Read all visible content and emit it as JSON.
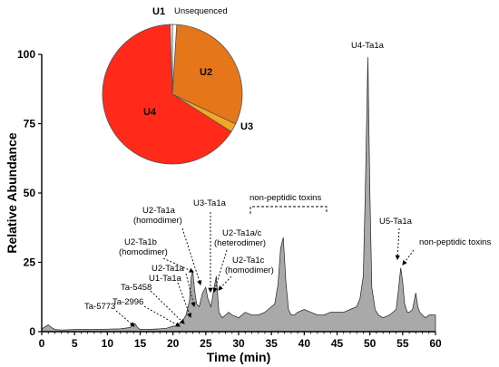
{
  "chart_data": [
    {
      "type": "area",
      "title": "",
      "xlabel": "Time (min)",
      "ylabel": "Relative Abundance",
      "xlim": [
        0,
        60
      ],
      "ylim": [
        0,
        100
      ],
      "xticks": [
        "0",
        "5",
        "10",
        "15",
        "20",
        "25",
        "30",
        "35",
        "40",
        "45",
        "50",
        "55",
        "60"
      ],
      "yticks": [
        "0",
        "25",
        "50",
        "75",
        "100"
      ],
      "fill_color": "#a9a9a9",
      "series": [
        {
          "x": [
            0,
            1,
            1.5,
            2,
            3,
            5,
            8,
            10,
            12,
            13.5,
            14.2,
            14.6,
            15,
            16,
            18,
            19,
            20,
            20.5,
            21,
            21.5,
            22,
            22.5,
            22.8,
            23,
            23.3,
            23.6,
            24,
            24.5,
            25,
            25.3,
            25.8,
            26.2,
            26.6,
            27,
            27.5,
            28,
            28.5,
            29,
            30,
            31,
            32,
            33,
            34,
            35,
            35.5,
            36,
            36.4,
            36.8,
            37.2,
            37.6,
            38,
            38.5,
            39,
            40,
            41,
            42,
            43,
            44,
            45,
            46,
            47,
            48,
            48.5,
            49,
            49.3,
            49.7,
            50,
            50.3,
            50.8,
            51.3,
            52,
            53,
            54,
            54.3,
            54.7,
            55,
            55.3,
            55.7,
            56,
            56.5,
            57,
            57.3,
            57.6,
            58,
            58.5,
            59,
            60
          ],
          "y": [
            1,
            2.5,
            1.5,
            0.8,
            0.6,
            0.8,
            0.8,
            0.9,
            1,
            1.5,
            3,
            1.5,
            0.8,
            0.8,
            1,
            1.2,
            2,
            2,
            3,
            4,
            6,
            11,
            20,
            22,
            15,
            10,
            9,
            14,
            16,
            12,
            9,
            15,
            20,
            7,
            5,
            6,
            7,
            6,
            5,
            7,
            6,
            6,
            7,
            9,
            10,
            17,
            30,
            34,
            18,
            8,
            6,
            6,
            7,
            8,
            7,
            6,
            6,
            7,
            7,
            7,
            8,
            9,
            12,
            20,
            50,
            99,
            50,
            16,
            8,
            6,
            5,
            6,
            8,
            14,
            23,
            18,
            10,
            7,
            7,
            8,
            14,
            9,
            7,
            6,
            5,
            6,
            6
          ]
        }
      ],
      "annotations": [
        "Ta-5773",
        "Ta-2996",
        "Ta-5458",
        "U1-Ta1a",
        "U2-Ta1a",
        "U2-Ta1b (homodimer)",
        "U2-Ta1a (homodimer)",
        "U3-Ta1a",
        "U2-Ta1a/c (heterodimer)",
        "U2-Ta1c (homodimer)",
        "non-peptidic toxins",
        "U4-Ta1a",
        "U5-Ta1a",
        "non-peptidic toxins"
      ]
    },
    {
      "type": "pie",
      "labels": [
        "U1",
        "Unsequenced",
        "U2",
        "U3",
        "U4"
      ],
      "values": [
        0.5,
        1,
        31,
        2,
        65.5
      ],
      "colors": [
        "#ffffff",
        "#ffffff",
        "#e6761a",
        "#f5a623",
        "#ff2a1a"
      ]
    }
  ],
  "labels": {
    "xlabel": "Time (min)",
    "ylabel": "Relative Abundance",
    "ticks_x": [
      "0",
      "5",
      "10",
      "15",
      "20",
      "25",
      "30",
      "35",
      "40",
      "45",
      "50",
      "55",
      "60"
    ],
    "ticks_y": [
      "0",
      "25",
      "50",
      "75",
      "100"
    ],
    "ta5773": "Ta-5773",
    "ta2996": "Ta-2996",
    "ta5458": "Ta-5458",
    "u1ta1a": "U1-Ta1a",
    "u2ta1a": "U2-Ta1a",
    "u2ta1b_1": "U2-Ta1b",
    "u2ta1b_2": "(homodimer)",
    "u2ta1ah_1": "U2-Ta1a",
    "u2ta1ah_2": "(homodimer)",
    "u3ta1a": "U3-Ta1a",
    "u2ta1ac_1": "U2-Ta1a/c",
    "u2ta1ac_2": "(heterodimer)",
    "u2ta1c_1": "U2-Ta1c",
    "u2ta1c_2": "(homodimer)",
    "nonpep1": "non-peptidic toxins",
    "u4ta1a": "U4-Ta1a",
    "u5ta1a": "U5-Ta1a",
    "nonpep2": "non-peptidic toxins",
    "pie_u1": "U1",
    "pie_unseq": "Unsequenced",
    "pie_u2": "U2",
    "pie_u3": "U3",
    "pie_u4": "U4"
  }
}
